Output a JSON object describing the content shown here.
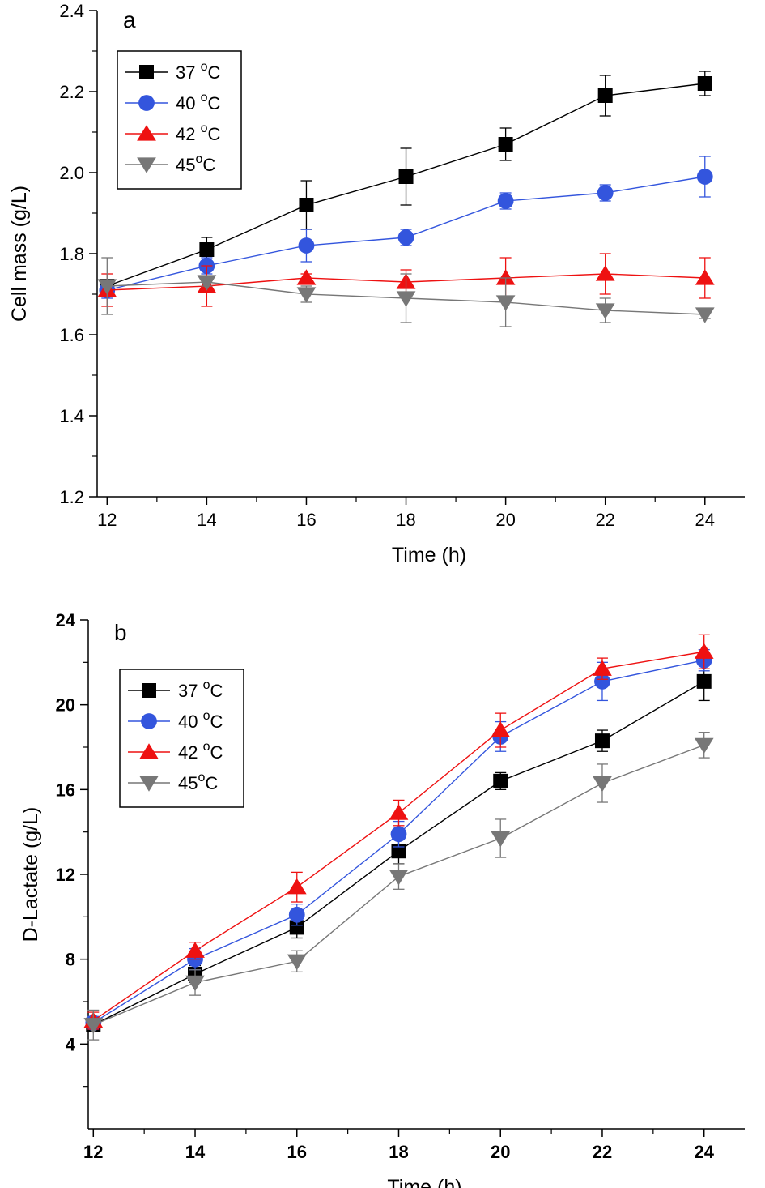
{
  "chart_data": [
    {
      "type": "line",
      "panel_label": "a",
      "xlabel": "Time (h)",
      "ylabel": "Cell mass (g/L)",
      "xlim": [
        11.8,
        24.8
      ],
      "ylim": [
        1.2,
        2.4
      ],
      "xticks": [
        "12",
        "14",
        "16",
        "18",
        "20",
        "22",
        "24"
      ],
      "yticks": [
        "1.2",
        "1.4",
        "1.6",
        "1.8",
        "2.0",
        "2.2",
        "2.4"
      ],
      "legend_position": "top-left",
      "x": [
        12,
        14,
        16,
        18,
        20,
        22,
        24
      ],
      "series": [
        {
          "name": "37 °C",
          "label_main": "37 ",
          "label_sup": "o",
          "label_end": "C",
          "marker": "square",
          "color": "#000000",
          "line_color": "#000000",
          "values": [
            1.72,
            1.81,
            1.92,
            1.99,
            2.07,
            2.19,
            2.22
          ],
          "errors": [
            0.01,
            0.03,
            0.06,
            0.07,
            0.04,
            0.05,
            0.03
          ]
        },
        {
          "name": "40 °C",
          "label_main": "40 ",
          "label_sup": "o",
          "label_end": "C",
          "marker": "circle",
          "color": "#3355dd",
          "line_color": "#3355dd",
          "values": [
            1.71,
            1.77,
            1.82,
            1.84,
            1.93,
            1.95,
            1.99
          ],
          "errors": [
            0.02,
            0.02,
            0.04,
            0.02,
            0.02,
            0.02,
            0.05
          ]
        },
        {
          "name": "42 °C",
          "label_main": "42 ",
          "label_sup": "o",
          "label_end": "C",
          "marker": "triangle-up",
          "color": "#ee1111",
          "line_color": "#ee1111",
          "values": [
            1.71,
            1.72,
            1.74,
            1.73,
            1.74,
            1.75,
            1.74
          ],
          "errors": [
            0.04,
            0.05,
            0.01,
            0.03,
            0.05,
            0.05,
            0.05
          ]
        },
        {
          "name": "45 °C",
          "label_main": "45",
          "label_sup": "o",
          "label_end": "C",
          "marker": "triangle-down",
          "color": "#777777",
          "line_color": "#777777",
          "values": [
            1.72,
            1.73,
            1.7,
            1.69,
            1.68,
            1.66,
            1.65
          ],
          "errors": [
            0.07,
            0.01,
            0.02,
            0.06,
            0.06,
            0.03,
            0.01
          ]
        }
      ]
    },
    {
      "type": "line",
      "panel_label": "b",
      "xlabel": "Time (h)",
      "ylabel": "D-Lactate (g/L)",
      "xlim": [
        11.9,
        24.8
      ],
      "ylim": [
        0,
        24
      ],
      "xticks": [
        "12",
        "14",
        "16",
        "18",
        "20",
        "22",
        "24"
      ],
      "yticks": [
        "4",
        "8",
        "12",
        "16",
        "20",
        "24"
      ],
      "legend_position": "top-left",
      "x": [
        12,
        14,
        16,
        18,
        20,
        22,
        24
      ],
      "series": [
        {
          "name": "37 °C",
          "label_main": "37 ",
          "label_sup": "o",
          "label_end": "C",
          "marker": "square",
          "color": "#000000",
          "line_color": "#000000",
          "values": [
            4.9,
            7.3,
            9.5,
            13.1,
            16.4,
            18.3,
            21.1
          ],
          "errors": [
            0.3,
            0.4,
            0.5,
            0.6,
            0.4,
            0.5,
            0.9
          ]
        },
        {
          "name": "40 °C",
          "label_main": "40 ",
          "label_sup": "o",
          "label_end": "C",
          "marker": "circle",
          "color": "#3355dd",
          "line_color": "#3355dd",
          "values": [
            5.0,
            8.0,
            10.1,
            13.9,
            18.5,
            21.1,
            22.1
          ],
          "errors": [
            0.3,
            0.5,
            0.5,
            0.6,
            0.7,
            0.9,
            0.5
          ]
        },
        {
          "name": "42 °C",
          "label_main": "42 ",
          "label_sup": "o",
          "label_end": "C",
          "marker": "triangle-up",
          "color": "#ee1111",
          "line_color": "#ee1111",
          "values": [
            5.1,
            8.4,
            11.4,
            14.9,
            18.8,
            21.7,
            22.5
          ],
          "errors": [
            0.4,
            0.4,
            0.7,
            0.6,
            0.8,
            0.5,
            0.8
          ]
        },
        {
          "name": "45 °C",
          "label_main": "45",
          "label_sup": "o",
          "label_end": "C",
          "marker": "triangle-down",
          "color": "#777777",
          "line_color": "#777777",
          "values": [
            4.9,
            6.9,
            7.9,
            11.9,
            13.7,
            16.3,
            18.1
          ],
          "errors": [
            0.7,
            0.6,
            0.5,
            0.6,
            0.9,
            0.9,
            0.6
          ]
        }
      ]
    }
  ]
}
